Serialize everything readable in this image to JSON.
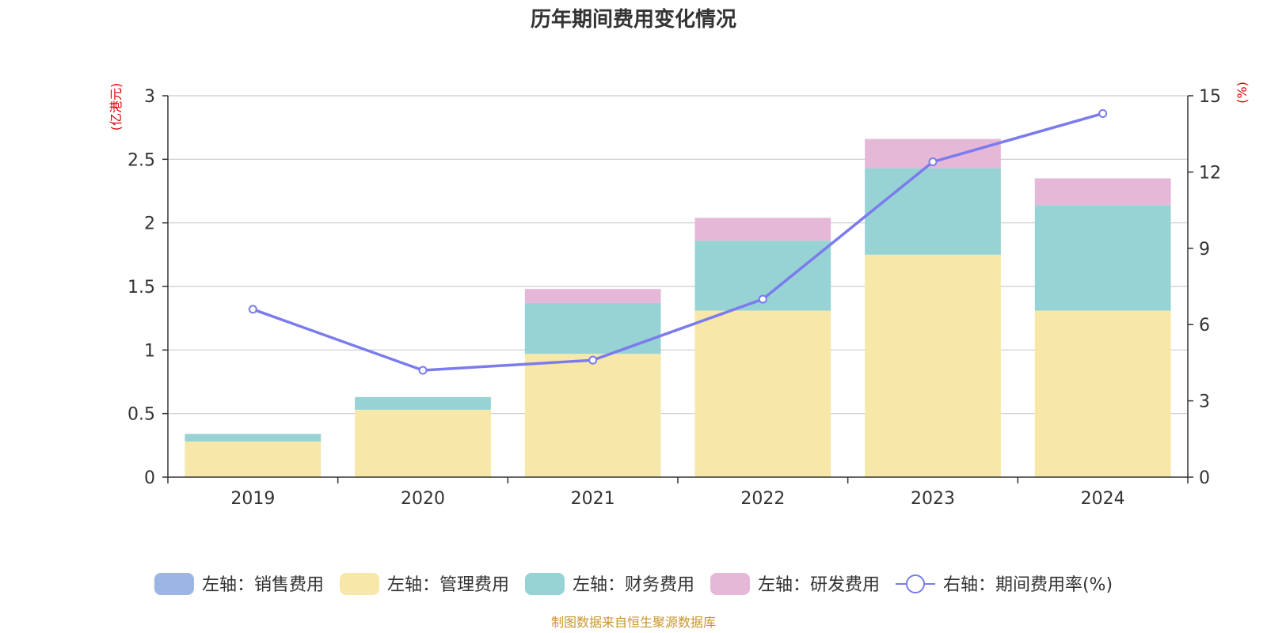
{
  "chart_data": {
    "type": "bar",
    "title": "历年期间费用变化情况",
    "categories": [
      "2019",
      "2020",
      "2021",
      "2022",
      "2023",
      "2024"
    ],
    "y_left": {
      "unit_label": "(亿港元)",
      "ylim": [
        0,
        3
      ],
      "ticks": [
        "0",
        "0.5",
        "1",
        "1.5",
        "2",
        "2.5",
        "3"
      ]
    },
    "y_right": {
      "unit_label": "(%)",
      "ylim": [
        0,
        15
      ],
      "ticks": [
        "0",
        "3",
        "6",
        "9",
        "12",
        "15"
      ]
    },
    "stacked": true,
    "grid": true,
    "legend_position": "bottom",
    "series": [
      {
        "name": "左轴：销售费用",
        "axis": "left",
        "type": "bar",
        "color": "#9db5e2",
        "values": [
          0,
          0,
          0,
          0,
          0,
          0
        ]
      },
      {
        "name": "左轴：管理费用",
        "axis": "left",
        "type": "bar",
        "color": "#f7e7a8",
        "values": [
          0.28,
          0.53,
          0.97,
          1.31,
          1.75,
          1.31
        ]
      },
      {
        "name": "左轴：财务费用",
        "axis": "left",
        "type": "bar",
        "color": "#97d3d4",
        "values": [
          0.06,
          0.1,
          0.4,
          0.55,
          0.68,
          0.83
        ]
      },
      {
        "name": "左轴：研发费用",
        "axis": "left",
        "type": "bar",
        "color": "#e5b8d8",
        "values": [
          0,
          0,
          0.11,
          0.18,
          0.23,
          0.21
        ]
      },
      {
        "name": "右轴：期间费用率(%)",
        "axis": "right",
        "type": "line",
        "color": "#7b7bee",
        "values": [
          6.6,
          4.2,
          4.6,
          7.0,
          12.4,
          14.3
        ]
      }
    ],
    "source": "制图数据来自恒生聚源数据库"
  }
}
